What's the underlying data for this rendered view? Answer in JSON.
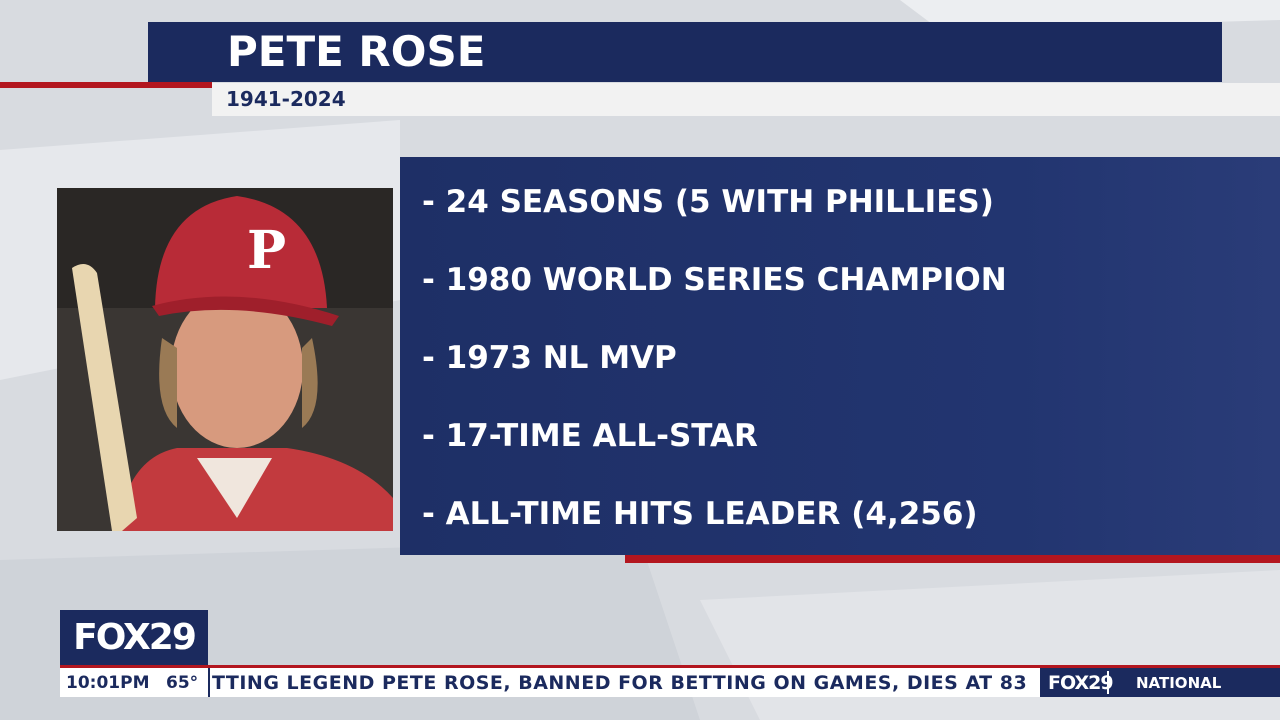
{
  "header": {
    "title": "PETE ROSE",
    "subtitle": "1941-2024"
  },
  "bullets": [
    "- 24 SEASONS (5 WITH PHILLIES)",
    "- 1980 WORLD SERIES CHAMPION",
    "- 1973 NL MVP",
    "- 17-TIME ALL-STAR",
    "- ALL-TIME HITS LEADER (4,256)"
  ],
  "lower_third": {
    "logo": "FOX29",
    "time": "10:01PM",
    "temperature": "65°",
    "ticker": "TTING LEGEND PETE ROSE, BANNED FOR BETTING ON GAMES, DIES AT 83",
    "ticker_logo": "FOX29",
    "region": "NATIONAL"
  }
}
